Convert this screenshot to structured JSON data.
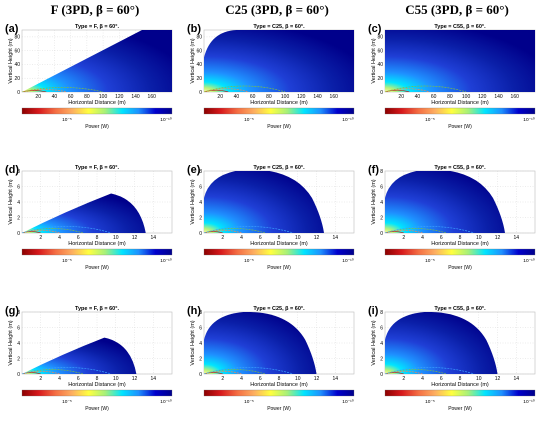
{
  "header": {
    "col1": "F (3PD, β = 60°)",
    "col2": "C25 (3PD, β = 60°)",
    "col3": "C55 (3PD, β = 60°)"
  },
  "colorbar": {
    "label": "Power (W)",
    "tick_left": "10⁻⁵",
    "tick_right": "10⁻¹⁰",
    "stops": [
      "#8b0000",
      "#d7191c",
      "#f46d43",
      "#fdae61",
      "#ffff40",
      "#a6f07a",
      "#00e5ff",
      "#1e90ff",
      "#0000cd",
      "#00008b"
    ]
  },
  "chart_data": [
    {
      "id": "a",
      "panel_label": "(a)",
      "title": "Type = F, β = 60°.",
      "type": "heatmap",
      "xlabel": "Horizontal Distance (m)",
      "ylabel": "Vertical Height (m)",
      "xlim": [
        0,
        185
      ],
      "ylim": [
        0,
        90
      ],
      "xticks": [
        "20",
        "40",
        "60",
        "80",
        "100",
        "120",
        "140",
        "160"
      ],
      "yticks": [
        "0",
        "20",
        "40",
        "60",
        "80"
      ],
      "region": "wedge",
      "color_scale": "log10 power, 1e-5 to 1e-10 W",
      "contours_at_x": [
        30,
        55,
        100
      ]
    },
    {
      "id": "b",
      "panel_label": "(b)",
      "title": "Type = C25, β = 60°.",
      "type": "heatmap",
      "xlabel": "Horizontal Distance (m)",
      "ylabel": "Vertical Height (m)",
      "xlim": [
        0,
        185
      ],
      "ylim": [
        0,
        90
      ],
      "xticks": [
        "20",
        "40",
        "60",
        "80",
        "100",
        "120",
        "140",
        "160"
      ],
      "yticks": [
        "0",
        "20",
        "40",
        "60",
        "80"
      ],
      "region": "dome",
      "color_scale": "log10 power, 1e-5 to 1e-10 W",
      "contours_at_x": [
        30,
        55,
        100
      ]
    },
    {
      "id": "c",
      "panel_label": "(c)",
      "title": "Type = C55, β = 60°.",
      "type": "heatmap",
      "xlabel": "Horizontal Distance (m)",
      "ylabel": "Vertical Height (m)",
      "xlim": [
        0,
        185
      ],
      "ylim": [
        0,
        90
      ],
      "xticks": [
        "20",
        "40",
        "60",
        "80",
        "100",
        "120",
        "140",
        "160"
      ],
      "yticks": [
        "0",
        "20",
        "40",
        "60",
        "80"
      ],
      "region": "full",
      "color_scale": "log10 power, 1e-5 to 1e-10 W",
      "contours_at_x": [
        30,
        55,
        100
      ]
    },
    {
      "id": "d",
      "panel_label": "(d)",
      "title": "Type = F, β = 60°.",
      "type": "heatmap",
      "xlabel": "Horizontal Distance (m)",
      "ylabel": "Vertical Height (m)",
      "xlim": [
        0,
        16
      ],
      "ylim": [
        0,
        8
      ],
      "xticks": [
        "2",
        "4",
        "6",
        "8",
        "10",
        "12",
        "14"
      ],
      "yticks": [
        "0",
        "2",
        "4",
        "6",
        "8"
      ],
      "region": "low-dome",
      "extent": [
        13.2,
        5.1
      ],
      "color_scale": "log10 power, 1e-5 to 1e-10 W",
      "contours_at_x": [
        2,
        4,
        6.5,
        9.5
      ]
    },
    {
      "id": "e",
      "panel_label": "(e)",
      "title": "Type = C25, β = 60°.",
      "type": "heatmap",
      "xlabel": "Horizontal Distance (m)",
      "ylabel": "Vertical Height (m)",
      "xlim": [
        0,
        16
      ],
      "ylim": [
        0,
        8
      ],
      "xticks": [
        "2",
        "4",
        "6",
        "8",
        "10",
        "12",
        "14"
      ],
      "yticks": [
        "0",
        "2",
        "4",
        "6",
        "8"
      ],
      "region": "tall-dome",
      "extent": [
        12.8,
        8.2
      ],
      "color_scale": "log10 power, 1e-5 to 1e-10 W",
      "contours_at_x": [
        2,
        4,
        6.5,
        9.5
      ]
    },
    {
      "id": "f",
      "panel_label": "(f)",
      "title": "Type = C55, β = 60°.",
      "type": "heatmap",
      "xlabel": "Horizontal Distance (m)",
      "ylabel": "Vertical Height (m)",
      "xlim": [
        0,
        16
      ],
      "ylim": [
        0,
        8
      ],
      "xticks": [
        "2",
        "4",
        "6",
        "8",
        "10",
        "12",
        "14"
      ],
      "yticks": [
        "0",
        "2",
        "4",
        "6",
        "8"
      ],
      "region": "tall-dome",
      "extent": [
        12.8,
        8.2
      ],
      "color_scale": "log10 power, 1e-5 to 1e-10 W",
      "contours_at_x": [
        2,
        4,
        6.5,
        9.5
      ]
    },
    {
      "id": "g",
      "panel_label": "(g)",
      "title": "Type = F, β = 60°.",
      "type": "heatmap",
      "xlabel": "Horizontal Distance (m)",
      "ylabel": "Vertical Height (m)",
      "xlim": [
        0,
        16
      ],
      "ylim": [
        0,
        8
      ],
      "xticks": [
        "2",
        "4",
        "6",
        "8",
        "10",
        "12",
        "14"
      ],
      "yticks": [
        "0",
        "2",
        "4",
        "6",
        "8"
      ],
      "region": "low-dome",
      "extent": [
        12.2,
        4.7
      ],
      "color_scale": "log10 power, 1e-5 to 1e-10 W",
      "contours_at_x": [
        2,
        4,
        6.5,
        9.5
      ]
    },
    {
      "id": "h",
      "panel_label": "(h)",
      "title": "Type = C25, β = 60°.",
      "type": "heatmap",
      "xlabel": "Horizontal Distance (m)",
      "ylabel": "Vertical Height (m)",
      "xlim": [
        0,
        16
      ],
      "ylim": [
        0,
        8
      ],
      "xticks": [
        "2",
        "4",
        "6",
        "8",
        "10",
        "12",
        "14"
      ],
      "yticks": [
        "0",
        "2",
        "4",
        "6",
        "8"
      ],
      "region": "tall-dome",
      "extent": [
        12.0,
        8.0
      ],
      "color_scale": "log10 power, 1e-5 to 1e-10 W",
      "contours_at_x": [
        2,
        4,
        6.5,
        9.5
      ]
    },
    {
      "id": "i",
      "panel_label": "(i)",
      "title": "Type = C55, β = 60°.",
      "type": "heatmap",
      "xlabel": "Horizontal Distance (m)",
      "ylabel": "Vertical Height (m)",
      "xlim": [
        0,
        16
      ],
      "ylim": [
        0,
        8
      ],
      "xticks": [
        "2",
        "4",
        "6",
        "8",
        "10",
        "12",
        "14"
      ],
      "yticks": [
        "0",
        "2",
        "4",
        "6",
        "8"
      ],
      "region": "tall-dome",
      "extent": [
        12.0,
        8.0
      ],
      "color_scale": "log10 power, 1e-5 to 1e-10 W",
      "contours_at_x": [
        2,
        4,
        6.5,
        9.5
      ]
    }
  ]
}
